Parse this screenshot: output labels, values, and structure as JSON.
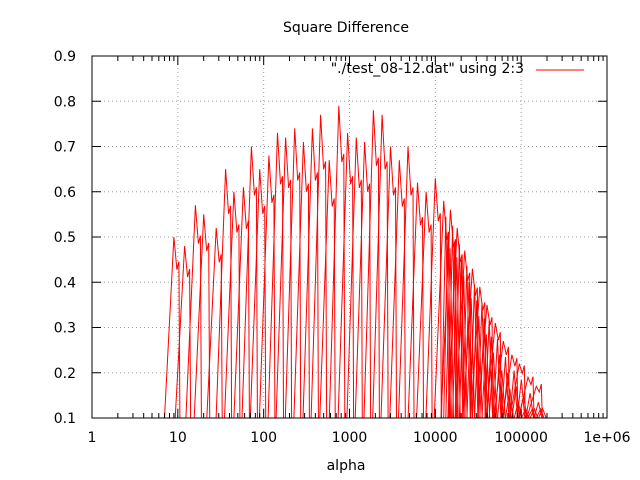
{
  "chart_data": {
    "type": "line",
    "title": "Square Difference",
    "xlabel": "alpha",
    "ylabel": "",
    "xscale": "log",
    "xlim": [
      1,
      1000000
    ],
    "ylim": [
      0.1,
      0.9
    ],
    "x_ticks": [
      1,
      10,
      100,
      1000,
      10000,
      100000,
      1000000
    ],
    "x_tick_labels": [
      "1",
      "10",
      "100",
      "1000",
      "10000",
      "100000",
      "1e+06"
    ],
    "y_ticks": [
      0.1,
      0.2,
      0.3,
      0.4,
      0.5,
      0.6,
      0.7,
      0.8,
      0.9
    ],
    "y_tick_labels": [
      "0.1",
      "0.2",
      "0.3",
      "0.4",
      "0.5",
      "0.6",
      "0.7",
      "0.8",
      "0.9"
    ],
    "grid": true,
    "legend_position": "top-right",
    "series": [
      {
        "name": "\"./test_08-12.dat\" using 2:3",
        "color": "#ff0000",
        "sweep_peaks": [
          {
            "x": 9,
            "y": 0.5
          },
          {
            "x": 12,
            "y": 0.48
          },
          {
            "x": 16,
            "y": 0.57
          },
          {
            "x": 20,
            "y": 0.55
          },
          {
            "x": 28,
            "y": 0.52
          },
          {
            "x": 36,
            "y": 0.65
          },
          {
            "x": 45,
            "y": 0.6
          },
          {
            "x": 58,
            "y": 0.61
          },
          {
            "x": 72,
            "y": 0.7
          },
          {
            "x": 90,
            "y": 0.65
          },
          {
            "x": 115,
            "y": 0.68
          },
          {
            "x": 145,
            "y": 0.73
          },
          {
            "x": 180,
            "y": 0.72
          },
          {
            "x": 230,
            "y": 0.74
          },
          {
            "x": 290,
            "y": 0.71
          },
          {
            "x": 370,
            "y": 0.74
          },
          {
            "x": 460,
            "y": 0.77
          },
          {
            "x": 580,
            "y": 0.67
          },
          {
            "x": 750,
            "y": 0.79
          },
          {
            "x": 950,
            "y": 0.73
          },
          {
            "x": 1200,
            "y": 0.72
          },
          {
            "x": 1500,
            "y": 0.71
          },
          {
            "x": 1900,
            "y": 0.78
          },
          {
            "x": 2400,
            "y": 0.77
          },
          {
            "x": 3000,
            "y": 0.7
          },
          {
            "x": 3800,
            "y": 0.67
          },
          {
            "x": 4800,
            "y": 0.7
          },
          {
            "x": 6200,
            "y": 0.62
          },
          {
            "x": 7800,
            "y": 0.6
          },
          {
            "x": 10000,
            "y": 0.63
          },
          {
            "x": 12500,
            "y": 0.58
          },
          {
            "x": 15000,
            "y": 0.56
          },
          {
            "x": 18000,
            "y": 0.52
          },
          {
            "x": 22000,
            "y": 0.47
          },
          {
            "x": 27000,
            "y": 0.43
          },
          {
            "x": 33000,
            "y": 0.39
          },
          {
            "x": 40000,
            "y": 0.35
          },
          {
            "x": 50000,
            "y": 0.31
          },
          {
            "x": 62000,
            "y": 0.27
          },
          {
            "x": 78000,
            "y": 0.24
          },
          {
            "x": 95000,
            "y": 0.22
          },
          {
            "x": 120000,
            "y": 0.19
          },
          {
            "x": 150000,
            "y": 0.17
          }
        ]
      }
    ]
  }
}
